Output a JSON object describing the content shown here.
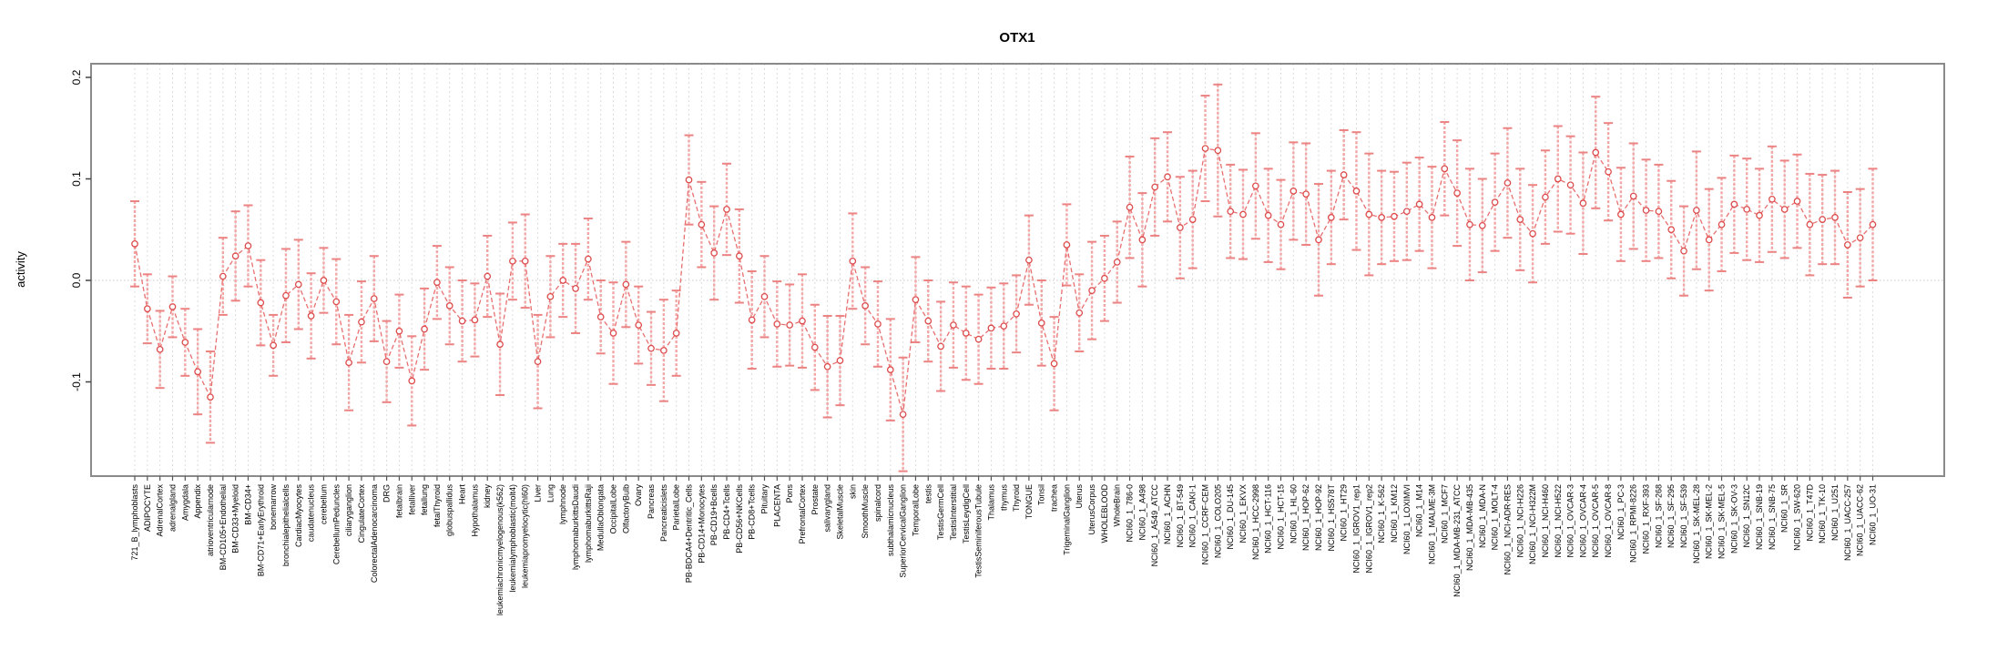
{
  "title": "OTX1",
  "ylabel": "activity",
  "chart_data": {
    "type": "line",
    "title": "OTX1",
    "xlabel": "",
    "ylabel": "activity",
    "ylim": [
      -0.193,
      0.213
    ],
    "yticks": [
      -0.1,
      0.0,
      0.1,
      0.2
    ],
    "ytick_labels": [
      "-0.1",
      "0.0",
      "0.1",
      "0.2"
    ],
    "grid": "vertical dashed gridline per category; dotted horizontal line at 0",
    "legend_position": "none",
    "series_name": "activity",
    "marker": "open-circle",
    "line_style": "dashed",
    "series_color": "#dd4b4b",
    "errorbar_color": "#f2a6a6",
    "box_color": "#8a8a8a",
    "categories": [
      "721_B_lymphoblasts",
      "ADIPOCYTE",
      "AdrenalCortex",
      "adrenalgland",
      "Amygdala",
      "Appendix",
      "atrioventricularnode",
      "BM-CD105+Endothelial",
      "BM-CD33+Myeloid",
      "BM-CD34+",
      "BM-CD71+EarlyErythroid",
      "bonemarrow",
      "bronchialepithelialcells",
      "CardiacMyocytes",
      "caudatenucleus",
      "cerebellum",
      "CerebellumPeduncles",
      "ciliaryganglion",
      "CingulateCortex",
      "ColorectalAdenocarcinoma",
      "DRG",
      "fetalbrain",
      "fetalliver",
      "fetallung",
      "fetalThyroid",
      "globuspallidus",
      "Heart",
      "Hypothalamus",
      "kidney",
      "leukemiachronicmyelogenous(k562)",
      "leukemialymphoblastic(molt4)",
      "leukemiapromyelocytic(hl60)",
      "Liver",
      "Lung",
      "lymphnode",
      "lymphomaburkittsDaudi",
      "lymphomaburkittsRaji",
      "MedullaOblongata",
      "OccipitalLobe",
      "OlfactoryBulb",
      "Ovary",
      "Pancreas",
      "Pancreaticislets",
      "ParietalLobe",
      "PB-BDCA4+Dentritic_Cells",
      "PB-CD14+Monocytes",
      "PB-CD19+Bcells",
      "PB-CD4+Tcells",
      "PB-CD56+NKCells",
      "PB-CD8+Tcells",
      "Pituitary",
      "PLACENTA",
      "Pons",
      "PrefrontalCortex",
      "Prostate",
      "salivarygland",
      "SkeletalMuscle",
      "skin",
      "SmoothMuscle",
      "spinalcord",
      "subthalamicnucleus",
      "SuperiorCervicalGanglion",
      "TemporalLobe",
      "testis",
      "TestisGermCell",
      "TestisInterstitial",
      "TestisLeydigCell",
      "TestisSeminiferousTubule",
      "Thalamus",
      "thymus",
      "Thyroid",
      "TONGUE",
      "Tonsil",
      "trachea",
      "TrigeminalGanglion",
      "Uterus",
      "UterusCorpus",
      "WHOLEBLOOD",
      "WholeBrain",
      "NCI60_1_786-0",
      "NCI60_1_A498",
      "NCI60_1_A549_ATCC",
      "NCI60_1_ACHN",
      "NCI60_1_BT-549",
      "NCI60_1_CAKI-1",
      "NCI60_1_CCRF-CEM",
      "NCI60_1_COLO205",
      "NCI60_1_DU-145",
      "NCI60_1_EKVX",
      "NCI60_1_HCC-2998",
      "NCI60_1_HCT-116",
      "NCI60_1_HCT-15",
      "NCI60_1_HL-60",
      "NCI60_1_HOP-62",
      "NCI60_1_HOP-92",
      "NCI60_1_HS578T",
      "NCI60_1_HT29",
      "NCI60_1_IGROV1_rep1",
      "NCI60_1_IGROV1_rep2",
      "NCI60_1_K-562",
      "NCI60_1_KM12",
      "NCI60_1_LOXIMVI",
      "NCI60_1_M14",
      "NCI60_1_MALME-3M",
      "NCI60_1_MCF7",
      "NCI60_1_MDA-MB-231_ATCC",
      "NCI60_1_MDA-MB-435",
      "NCI60_1_MDA-N",
      "NCI60_1_MOLT-4",
      "NCI60_1_NCI-ADR-RES",
      "NCI60_1_NCI-H226",
      "NCI60_1_NCI-H322M",
      "NCI60_1_NCI-H460",
      "NCI60_1_NCI-H522",
      "NCI60_1_OVCAR-3",
      "NCI60_1_OVCAR-4",
      "NCI60_1_OVCAR-5",
      "NCI60_1_OVCAR-8",
      "NCI60_1_PC-3",
      "NCI60_1_RPMI-8226",
      "NCI60_1_RXF-393",
      "NCI60_1_SF-268",
      "NCI60_1_SF-295",
      "NCI60_1_SF-539",
      "NCI60_1_SK-MEL-28",
      "NCI60_1_SK-MEL-2",
      "NCI60_1_SK-MEL-5",
      "NCI60_1_SK-OV-3",
      "NCI60_1_SN12C",
      "NCI60_1_SNB-19",
      "NCI60_1_SNB-75",
      "NCI60_1_SR",
      "NCI60_1_SW-620",
      "NCI60_1_T47D",
      "NCI60_1_TK-10",
      "NCI60_1_U251",
      "NCI60_1_UACC-257",
      "NCI60_1_UACC-62",
      "NCI60_1_UO-31"
    ],
    "values": [
      0.036,
      -0.028,
      -0.068,
      -0.026,
      -0.061,
      -0.09,
      -0.115,
      0.004,
      0.024,
      0.034,
      -0.022,
      -0.064,
      -0.015,
      -0.004,
      -0.035,
      0.0,
      -0.021,
      -0.081,
      -0.041,
      -0.018,
      -0.08,
      -0.05,
      -0.099,
      -0.048,
      -0.002,
      -0.025,
      -0.04,
      -0.039,
      0.004,
      -0.063,
      0.019,
      0.019,
      -0.08,
      -0.016,
      0.0,
      -0.008,
      0.021,
      -0.036,
      -0.052,
      -0.004,
      -0.044,
      -0.067,
      -0.069,
      -0.052,
      0.099,
      0.055,
      0.027,
      0.07,
      0.024,
      -0.039,
      -0.016,
      -0.043,
      -0.044,
      -0.04,
      -0.066,
      -0.085,
      -0.079,
      0.019,
      -0.025,
      -0.043,
      -0.088,
      -0.132,
      -0.019,
      -0.04,
      -0.065,
      -0.044,
      -0.052,
      -0.058,
      -0.047,
      -0.045,
      -0.033,
      0.02,
      -0.042,
      -0.082,
      0.035,
      -0.032,
      -0.01,
      0.002,
      0.018,
      0.072,
      0.04,
      0.092,
      0.102,
      0.052,
      0.06,
      0.13,
      0.128,
      0.068,
      0.065,
      0.093,
      0.064,
      0.055,
      0.088,
      0.085,
      0.04,
      0.062,
      0.104,
      0.088,
      0.065,
      0.062,
      0.063,
      0.068,
      0.075,
      0.062,
      0.11,
      0.086,
      0.055,
      0.054,
      0.077,
      0.096,
      0.06,
      0.046,
      0.082,
      0.1,
      0.094,
      0.076,
      0.126,
      0.107,
      0.065,
      0.083,
      0.069,
      0.068,
      0.05,
      0.029,
      0.069,
      0.04,
      0.055,
      0.075,
      0.07,
      0.064,
      0.08,
      0.07,
      0.078,
      0.055,
      0.06,
      0.062,
      0.035,
      0.042,
      0.055
    ],
    "errors": [
      0.042,
      0.034,
      0.038,
      0.03,
      0.033,
      0.042,
      0.045,
      0.038,
      0.044,
      0.04,
      0.042,
      0.03,
      0.046,
      0.044,
      0.042,
      0.032,
      0.042,
      0.047,
      0.04,
      0.042,
      0.04,
      0.036,
      0.044,
      0.04,
      0.036,
      0.038,
      0.04,
      0.036,
      0.04,
      0.05,
      0.038,
      0.046,
      0.046,
      0.04,
      0.036,
      0.044,
      0.04,
      0.036,
      0.05,
      0.042,
      0.038,
      0.036,
      0.05,
      0.042,
      0.044,
      0.042,
      0.046,
      0.045,
      0.046,
      0.048,
      0.04,
      0.042,
      0.04,
      0.046,
      0.042,
      0.05,
      0.044,
      0.047,
      0.038,
      0.042,
      0.05,
      0.056,
      0.042,
      0.04,
      0.044,
      0.042,
      0.046,
      0.044,
      0.04,
      0.042,
      0.038,
      0.044,
      0.042,
      0.046,
      0.04,
      0.038,
      0.048,
      0.042,
      0.04,
      0.05,
      0.046,
      0.048,
      0.044,
      0.05,
      0.048,
      0.052,
      0.065,
      0.046,
      0.044,
      0.052,
      0.046,
      0.044,
      0.048,
      0.05,
      0.055,
      0.046,
      0.044,
      0.058,
      0.06,
      0.046,
      0.044,
      0.048,
      0.046,
      0.05,
      0.046,
      0.052,
      0.055,
      0.046,
      0.048,
      0.054,
      0.05,
      0.048,
      0.046,
      0.052,
      0.048,
      0.05,
      0.055,
      0.048,
      0.046,
      0.052,
      0.05,
      0.046,
      0.048,
      0.044,
      0.058,
      0.05,
      0.046,
      0.048,
      0.05,
      0.046,
      0.052,
      0.048,
      0.046,
      0.05,
      0.044,
      0.046,
      0.052,
      0.048,
      0.055
    ]
  }
}
